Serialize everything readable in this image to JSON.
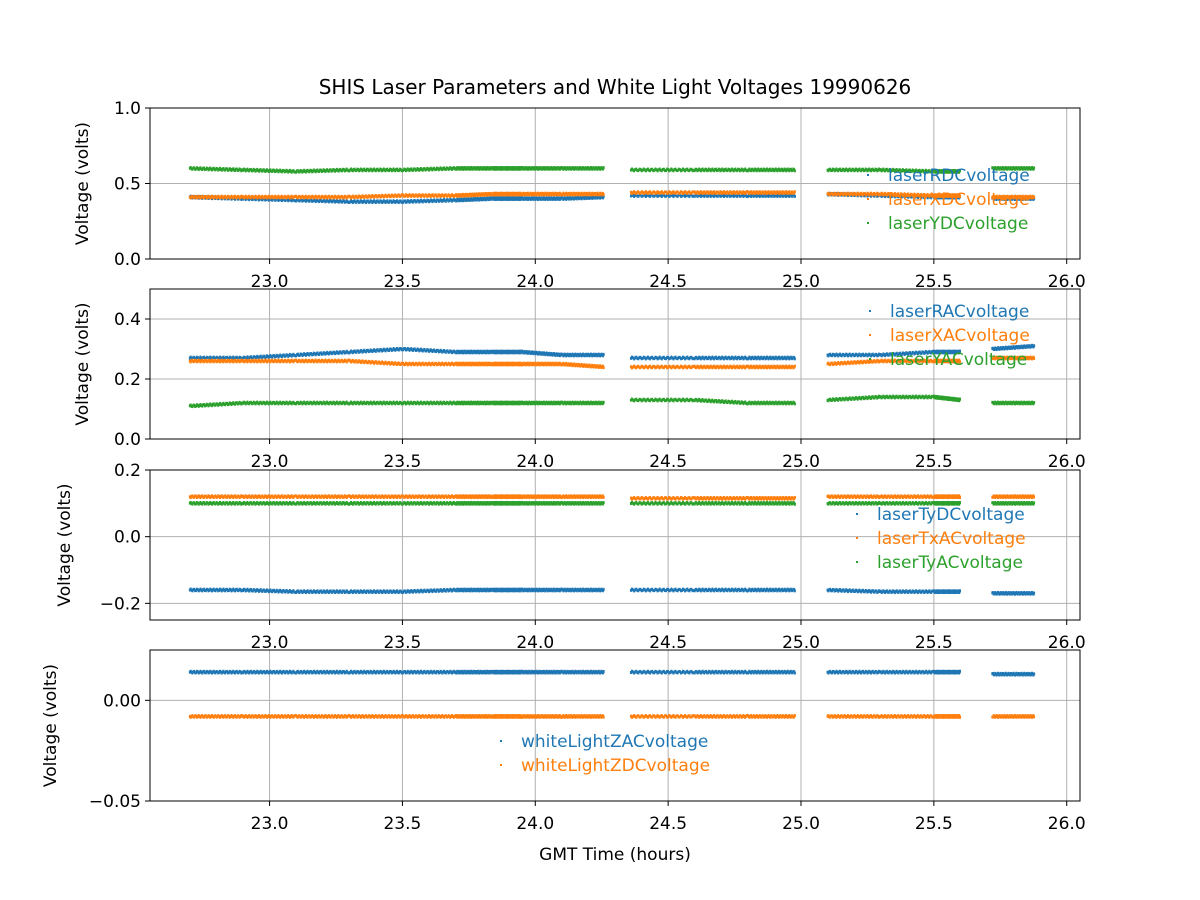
{
  "figure": {
    "title": "SHIS Laser Parameters and White Light Voltages 19990626",
    "xlabel": "GMT Time (hours)"
  },
  "colors": {
    "blue": "#1f77b4",
    "orange": "#ff7f0e",
    "green": "#2ca02c"
  },
  "chart_data": [
    {
      "type": "scatter",
      "ylabel": "Voltage (volts)",
      "xlim": [
        22.55,
        26.05
      ],
      "ylim": [
        0.0,
        1.0
      ],
      "xticks": [
        23.0,
        23.5,
        24.0,
        24.5,
        25.0,
        25.5,
        26.0
      ],
      "xtick_labels": [
        "23.0",
        "23.5",
        "24.0",
        "24.5",
        "25.0",
        "25.5",
        "26.0"
      ],
      "yticks": [
        0.0,
        0.5,
        1.0
      ],
      "ytick_labels": [
        "0.0",
        "0.5",
        "1.0"
      ],
      "grid": true,
      "legend_position": "right",
      "series": [
        {
          "name": "laserRDCvoltage",
          "color": "#1f77b4",
          "x": [
            22.7,
            22.9,
            23.1,
            23.3,
            23.5,
            23.7,
            23.84,
            23.95,
            24.1,
            24.26,
            24.36,
            24.6,
            24.8,
            24.98,
            25.1,
            25.3,
            25.5,
            25.6,
            25.72,
            25.88
          ],
          "y": [
            0.41,
            0.4,
            0.39,
            0.38,
            0.38,
            0.39,
            0.4,
            0.4,
            0.4,
            0.41,
            0.42,
            0.42,
            0.42,
            0.42,
            0.43,
            0.42,
            0.41,
            0.41,
            0.4,
            0.4
          ]
        },
        {
          "name": "laserXDCvoltage",
          "color": "#ff7f0e",
          "x": [
            22.7,
            22.9,
            23.1,
            23.3,
            23.5,
            23.7,
            23.84,
            23.95,
            24.1,
            24.26,
            24.36,
            24.6,
            24.8,
            24.98,
            25.1,
            25.3,
            25.5,
            25.6,
            25.72,
            25.88
          ],
          "y": [
            0.41,
            0.41,
            0.41,
            0.41,
            0.42,
            0.42,
            0.43,
            0.43,
            0.43,
            0.43,
            0.44,
            0.44,
            0.44,
            0.44,
            0.43,
            0.43,
            0.42,
            0.42,
            0.41,
            0.41
          ]
        },
        {
          "name": "laserYDCvoltage",
          "color": "#2ca02c",
          "x": [
            22.7,
            22.9,
            23.1,
            23.3,
            23.5,
            23.7,
            23.84,
            23.95,
            24.1,
            24.26,
            24.36,
            24.6,
            24.8,
            24.98,
            25.1,
            25.3,
            25.5,
            25.6,
            25.72,
            25.88
          ],
          "y": [
            0.6,
            0.59,
            0.58,
            0.59,
            0.59,
            0.6,
            0.6,
            0.6,
            0.6,
            0.6,
            0.59,
            0.59,
            0.59,
            0.59,
            0.59,
            0.59,
            0.58,
            0.58,
            0.6,
            0.6
          ]
        }
      ]
    },
    {
      "type": "scatter",
      "ylabel": "Voltage (volts)",
      "xlim": [
        22.55,
        26.05
      ],
      "ylim": [
        0.0,
        0.5
      ],
      "xticks": [
        23.0,
        23.5,
        24.0,
        24.5,
        25.0,
        25.5,
        26.0
      ],
      "xtick_labels": [
        "23.0",
        "23.5",
        "24.0",
        "24.5",
        "25.0",
        "25.5",
        "26.0"
      ],
      "yticks": [
        0.0,
        0.2,
        0.4
      ],
      "ytick_labels": [
        "0.0",
        "0.2",
        "0.4"
      ],
      "grid": true,
      "legend_position": "right",
      "series": [
        {
          "name": "laserRACvoltage",
          "color": "#1f77b4",
          "x": [
            22.7,
            22.9,
            23.1,
            23.3,
            23.5,
            23.7,
            23.84,
            23.95,
            24.1,
            24.26,
            24.36,
            24.6,
            24.8,
            24.98,
            25.1,
            25.3,
            25.5,
            25.6,
            25.72,
            25.88
          ],
          "y": [
            0.27,
            0.27,
            0.28,
            0.29,
            0.3,
            0.29,
            0.29,
            0.29,
            0.28,
            0.28,
            0.27,
            0.27,
            0.27,
            0.27,
            0.28,
            0.28,
            0.29,
            0.29,
            0.3,
            0.31
          ]
        },
        {
          "name": "laserXACvoltage",
          "color": "#ff7f0e",
          "x": [
            22.7,
            22.9,
            23.1,
            23.3,
            23.5,
            23.7,
            23.84,
            23.95,
            24.1,
            24.26,
            24.36,
            24.6,
            24.8,
            24.98,
            25.1,
            25.3,
            25.5,
            25.6,
            25.72,
            25.88
          ],
          "y": [
            0.26,
            0.26,
            0.26,
            0.26,
            0.25,
            0.25,
            0.25,
            0.25,
            0.25,
            0.24,
            0.24,
            0.24,
            0.24,
            0.24,
            0.25,
            0.26,
            0.26,
            0.26,
            0.27,
            0.27
          ]
        },
        {
          "name": "laserYACvoltage",
          "color": "#2ca02c",
          "x": [
            22.7,
            22.9,
            23.1,
            23.3,
            23.5,
            23.7,
            23.84,
            23.95,
            24.1,
            24.26,
            24.36,
            24.6,
            24.8,
            24.98,
            25.1,
            25.3,
            25.5,
            25.6,
            25.72,
            25.88
          ],
          "y": [
            0.11,
            0.12,
            0.12,
            0.12,
            0.12,
            0.12,
            0.12,
            0.12,
            0.12,
            0.12,
            0.13,
            0.13,
            0.12,
            0.12,
            0.13,
            0.14,
            0.14,
            0.13,
            0.12,
            0.12
          ]
        }
      ]
    },
    {
      "type": "scatter",
      "ylabel": "Voltage (volts)",
      "xlim": [
        22.55,
        26.05
      ],
      "ylim": [
        -0.25,
        0.2
      ],
      "xticks": [
        23.0,
        23.5,
        24.0,
        24.5,
        25.0,
        25.5,
        26.0
      ],
      "xtick_labels": [
        "23.0",
        "23.5",
        "24.0",
        "24.5",
        "25.0",
        "25.5",
        "26.0"
      ],
      "yticks": [
        -0.2,
        0.0,
        0.2
      ],
      "ytick_labels": [
        "−0.2",
        "0.0",
        "0.2"
      ],
      "grid": true,
      "legend_position": "right",
      "series": [
        {
          "name": "laserTyDCvoltage",
          "color": "#1f77b4",
          "x": [
            22.7,
            22.9,
            23.1,
            23.3,
            23.5,
            23.7,
            23.84,
            23.95,
            24.1,
            24.26,
            24.36,
            24.6,
            24.8,
            24.98,
            25.1,
            25.3,
            25.5,
            25.6,
            25.72,
            25.88
          ],
          "y": [
            -0.16,
            -0.16,
            -0.165,
            -0.165,
            -0.165,
            -0.16,
            -0.16,
            -0.16,
            -0.16,
            -0.16,
            -0.16,
            -0.16,
            -0.16,
            -0.16,
            -0.16,
            -0.165,
            -0.165,
            -0.165,
            -0.17,
            -0.17
          ]
        },
        {
          "name": "laserTxACvoltage",
          "color": "#ff7f0e",
          "x": [
            22.7,
            22.9,
            23.1,
            23.3,
            23.5,
            23.7,
            23.84,
            23.95,
            24.1,
            24.26,
            24.36,
            24.6,
            24.8,
            24.98,
            25.1,
            25.3,
            25.5,
            25.6,
            25.72,
            25.88
          ],
          "y": [
            0.12,
            0.12,
            0.12,
            0.12,
            0.12,
            0.12,
            0.12,
            0.12,
            0.12,
            0.12,
            0.115,
            0.115,
            0.115,
            0.115,
            0.12,
            0.12,
            0.12,
            0.12,
            0.12,
            0.12
          ]
        },
        {
          "name": "laserTyACvoltage",
          "color": "#2ca02c",
          "x": [
            22.7,
            22.9,
            23.1,
            23.3,
            23.5,
            23.7,
            23.84,
            23.95,
            24.1,
            24.26,
            24.36,
            24.6,
            24.8,
            24.98,
            25.1,
            25.3,
            25.5,
            25.6,
            25.72,
            25.88
          ],
          "y": [
            0.1,
            0.1,
            0.1,
            0.1,
            0.1,
            0.1,
            0.1,
            0.1,
            0.1,
            0.1,
            0.1,
            0.1,
            0.1,
            0.1,
            0.1,
            0.1,
            0.1,
            0.1,
            0.1,
            0.1
          ]
        }
      ]
    },
    {
      "type": "scatter",
      "ylabel": "Voltage (volts)",
      "xlim": [
        22.55,
        26.05
      ],
      "ylim": [
        -0.05,
        0.025
      ],
      "xticks": [
        23.0,
        23.5,
        24.0,
        24.5,
        25.0,
        25.5,
        26.0
      ],
      "xtick_labels": [
        "23.0",
        "23.5",
        "24.0",
        "24.5",
        "25.0",
        "25.5",
        "26.0"
      ],
      "yticks": [
        -0.05,
        0.0
      ],
      "ytick_labels": [
        "−0.05",
        "0.00"
      ],
      "grid": true,
      "legend_position": "lower center",
      "series": [
        {
          "name": "whiteLightZACvoltage",
          "color": "#1f77b4",
          "x": [
            22.7,
            22.9,
            23.1,
            23.3,
            23.5,
            23.7,
            23.84,
            23.95,
            24.1,
            24.26,
            24.36,
            24.6,
            24.8,
            24.98,
            25.1,
            25.3,
            25.5,
            25.6,
            25.72,
            25.88
          ],
          "y": [
            0.014,
            0.014,
            0.014,
            0.014,
            0.014,
            0.014,
            0.014,
            0.014,
            0.014,
            0.014,
            0.014,
            0.014,
            0.014,
            0.014,
            0.014,
            0.014,
            0.014,
            0.014,
            0.013,
            0.013
          ]
        },
        {
          "name": "whiteLightZDCvoltage",
          "color": "#ff7f0e",
          "x": [
            22.7,
            22.9,
            23.1,
            23.3,
            23.5,
            23.7,
            23.84,
            23.95,
            24.1,
            24.26,
            24.36,
            24.6,
            24.8,
            24.98,
            25.1,
            25.3,
            25.5,
            25.6,
            25.72,
            25.88
          ],
          "y": [
            -0.008,
            -0.008,
            -0.008,
            -0.008,
            -0.008,
            -0.008,
            -0.008,
            -0.008,
            -0.008,
            -0.008,
            -0.008,
            -0.008,
            -0.008,
            -0.008,
            -0.008,
            -0.008,
            -0.008,
            -0.008,
            -0.008,
            -0.008
          ]
        }
      ]
    }
  ]
}
